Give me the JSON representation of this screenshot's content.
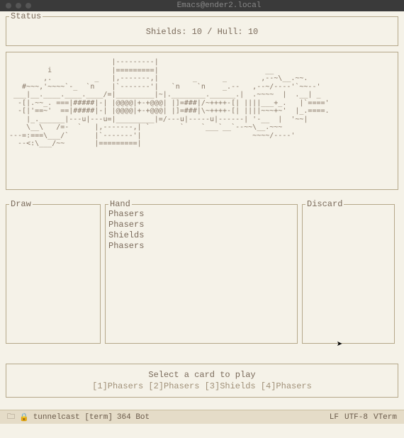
{
  "window": {
    "title": "Emacs@ender2.local"
  },
  "status": {
    "label": "Status",
    "shields_label": "Shields",
    "shields_value": 10,
    "hull_label": "Hull",
    "hull_value": 10
  },
  "ascii": {
    "art": "                        |---------|                                        \n         i              |=========|                         __             \n        ,.          _   |,-------,|        _      _        ,--~\\__.~~.    \n   #~~~,'~~~~`-_  `n    |`-------'|   `n    `n    _.--   ,--~/----'`~~--' \n ___|__.____.____.____/=|_________|~|.________.______.|  .~~~~  |  .__| _ \n  -[|.~~_. ===|#####|-| |@@@@|+-+@@@| |]=###|/~++++-[| ||||___+_.   |`====' \n  -[|'==~'  ==|#####|-| |@@@@|+-+@@@| |]=###|\\~++++-[| ||||~~~+~'  |_.====.\n    |_.______|---u|---u=|_________|=/---u|-----u|------| '-__  |  '~~| \n    \\__\\   /=-  `   |,-------,| `       `    `___`__`--~~\\__.~~~  \n---=:===\\___/`      |`-------'|                          ~~~~/----'  \n  --<:\\___/~~       |=========|                                        "
  },
  "draw": {
    "label": "Draw",
    "items": []
  },
  "hand": {
    "label": "Hand",
    "items": [
      "Phasers",
      "Phasers",
      "Shields",
      "Phasers"
    ]
  },
  "discard": {
    "label": "Discard",
    "items": []
  },
  "action": {
    "prompt": "Select a card to play",
    "options": "[1]Phasers [2]Phasers [3]Shields [4]Phasers"
  },
  "modeline": {
    "folder_icon": "🗀",
    "lock_icon": "🔒",
    "buffer_name": "tunnelcast [term]",
    "position": "364 Bot",
    "line_ending": "LF",
    "encoding": "UTF-8",
    "mode": "VTerm"
  },
  "colors": {
    "background": "#f5f2e8",
    "border": "#b5a88a",
    "text": "#7a6a5a",
    "modeline_bg": "#e5dcc8",
    "titlebar_bg": "#3a3a3a"
  }
}
